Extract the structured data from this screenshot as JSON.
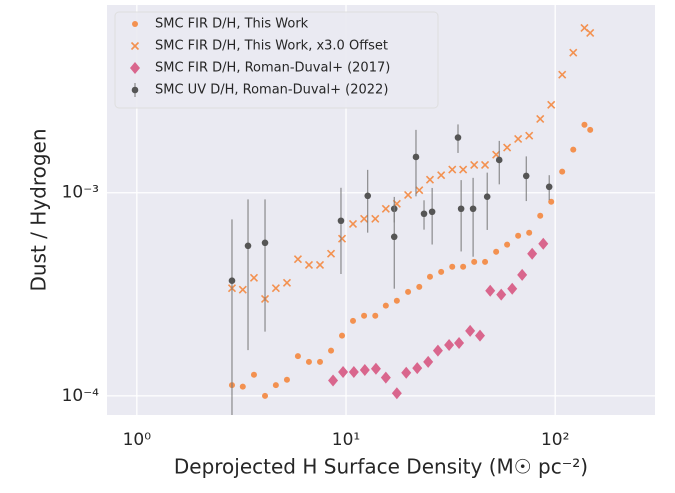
{
  "chart_data": {
    "type": "scatter",
    "xlabel": "Deprojected H Surface Density (M☉ pc⁻²)",
    "ylabel": "Dust / Hydrogen",
    "log_x": true,
    "log_y": true,
    "grid": true,
    "legend": "upper left",
    "xlim": [
      0.72,
      300
    ],
    "ylim": [
      8.05e-05,
      0.0084
    ],
    "xticks": [
      {
        "value": 1,
        "label": "10⁰"
      },
      {
        "value": 10,
        "label": "10¹"
      },
      {
        "value": 100,
        "label": "10²"
      }
    ],
    "yticks": [
      {
        "value": 0.0001,
        "label": "10⁻⁴"
      },
      {
        "value": 0.001,
        "label": "10⁻³"
      }
    ],
    "series": [
      {
        "name": "SMC FIR D/H, This Work",
        "color": "#f39150",
        "marker": "circle",
        "x": [
          2.85,
          3.21,
          3.63,
          4.1,
          4.62,
          5.22,
          5.89,
          6.65,
          7.51,
          8.48,
          9.57,
          10.8,
          12.2,
          13.8,
          15.5,
          17.5,
          19.8,
          22.4,
          25.2,
          28.5,
          32.2,
          36.3,
          41.0,
          46.2,
          52.2,
          58.9,
          66.5,
          75.1,
          84.8,
          95.7,
          108,
          122,
          138,
          147
        ],
        "values": [
          0.000113,
          0.000111,
          0.000127,
          0.0001,
          0.000113,
          0.00012,
          0.000157,
          0.000147,
          0.000147,
          0.000167,
          0.000198,
          0.000234,
          0.000248,
          0.000248,
          0.000278,
          0.000294,
          0.000325,
          0.000344,
          0.000386,
          0.000408,
          0.000432,
          0.000432,
          0.000457,
          0.000457,
          0.000512,
          0.000555,
          0.000614,
          0.000635,
          0.00077,
          0.000903,
          0.00127,
          0.00163,
          0.00216,
          0.00204
        ]
      },
      {
        "name": "SMC FIR D/H, This Work, x3.0 Offset",
        "color": "#f39150",
        "marker": "x",
        "x": [
          2.85,
          3.21,
          3.63,
          4.1,
          4.62,
          5.22,
          5.89,
          6.65,
          7.51,
          8.48,
          9.57,
          10.8,
          12.2,
          13.8,
          15.5,
          17.5,
          19.8,
          22.4,
          25.2,
          28.5,
          32.2,
          36.3,
          41.0,
          46.2,
          52.2,
          58.9,
          66.5,
          75.1,
          84.8,
          95.7,
          108,
          122,
          138,
          147
        ],
        "values": [
          0.000339,
          0.000333,
          0.000381,
          0.0003,
          0.000339,
          0.00036,
          0.000471,
          0.000441,
          0.000441,
          0.000501,
          0.000594,
          0.000702,
          0.000744,
          0.000744,
          0.000834,
          0.000882,
          0.000975,
          0.00103,
          0.00116,
          0.00122,
          0.0013,
          0.0013,
          0.00137,
          0.00137,
          0.00154,
          0.00167,
          0.00184,
          0.00191,
          0.00231,
          0.00271,
          0.00381,
          0.00489,
          0.00648,
          0.00612
        ]
      },
      {
        "name": "SMC FIR D/H, Roman-Duval+ (2017)",
        "color": "#d9668d",
        "marker": "diamond",
        "x": [
          8.67,
          9.68,
          10.9,
          12.3,
          13.9,
          15.5,
          17.5,
          19.4,
          21.9,
          24.7,
          27.5,
          31.1,
          34.7,
          39.2,
          43.7,
          48.9,
          55.2,
          62.3,
          69.5,
          77.6,
          87.7
        ],
        "values": [
          0.000119,
          0.000131,
          0.000131,
          0.000134,
          0.000136,
          0.000123,
          0.000103,
          0.00013,
          0.000137,
          0.000147,
          0.000167,
          0.000178,
          0.000182,
          0.000209,
          0.000198,
          0.000329,
          0.000315,
          0.000337,
          0.000394,
          0.000501,
          0.000561
        ]
      },
      {
        "name": "SMC UV D/H, Roman-Duval+ (2022)",
        "color": "#555555",
        "marker": "errorbar",
        "x": [
          2.85,
          3.4,
          4.1,
          9.46,
          12.7,
          17.0,
          17.0,
          21.6,
          23.6,
          25.8,
          34.3,
          35.5,
          40.5,
          47.3,
          54.0,
          72.7,
          93.6
        ],
        "values": [
          0.000369,
          0.000548,
          0.000567,
          0.000728,
          0.000966,
          0.000834,
          0.000607,
          0.0015,
          0.000788,
          0.000806,
          0.00187,
          0.000834,
          0.000834,
          0.000956,
          0.00145,
          0.00121,
          0.00107
        ],
        "errors": [
          0.00037,
          0.00038,
          0.00036,
          0.00033,
          0.00033,
          0.00012,
          0.00027,
          0.00054,
          0.00013,
          0.00025,
          0.0003,
          0.00032,
          0.00035,
          0.0003,
          0.00035,
          0.0003,
          0.00015
        ]
      }
    ]
  }
}
